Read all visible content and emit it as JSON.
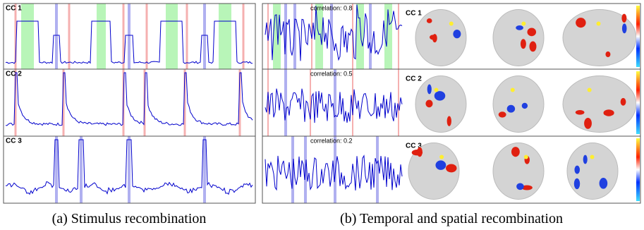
{
  "panel_a": {
    "rows": [
      {
        "label": "CC 1"
      },
      {
        "label": "CC 2"
      },
      {
        "label": "CC 3"
      }
    ],
    "caption": "(a) Stimulus recombination"
  },
  "panel_b": {
    "rows": [
      {
        "label": "CC 1",
        "correlation": "correlation: 0.8"
      },
      {
        "label": "CC 2",
        "correlation": "correlation: 0.5"
      },
      {
        "label": "CC 3",
        "correlation": "correlation: 0.2"
      }
    ],
    "caption": "(b) Temporal and spatial recombination"
  }
}
